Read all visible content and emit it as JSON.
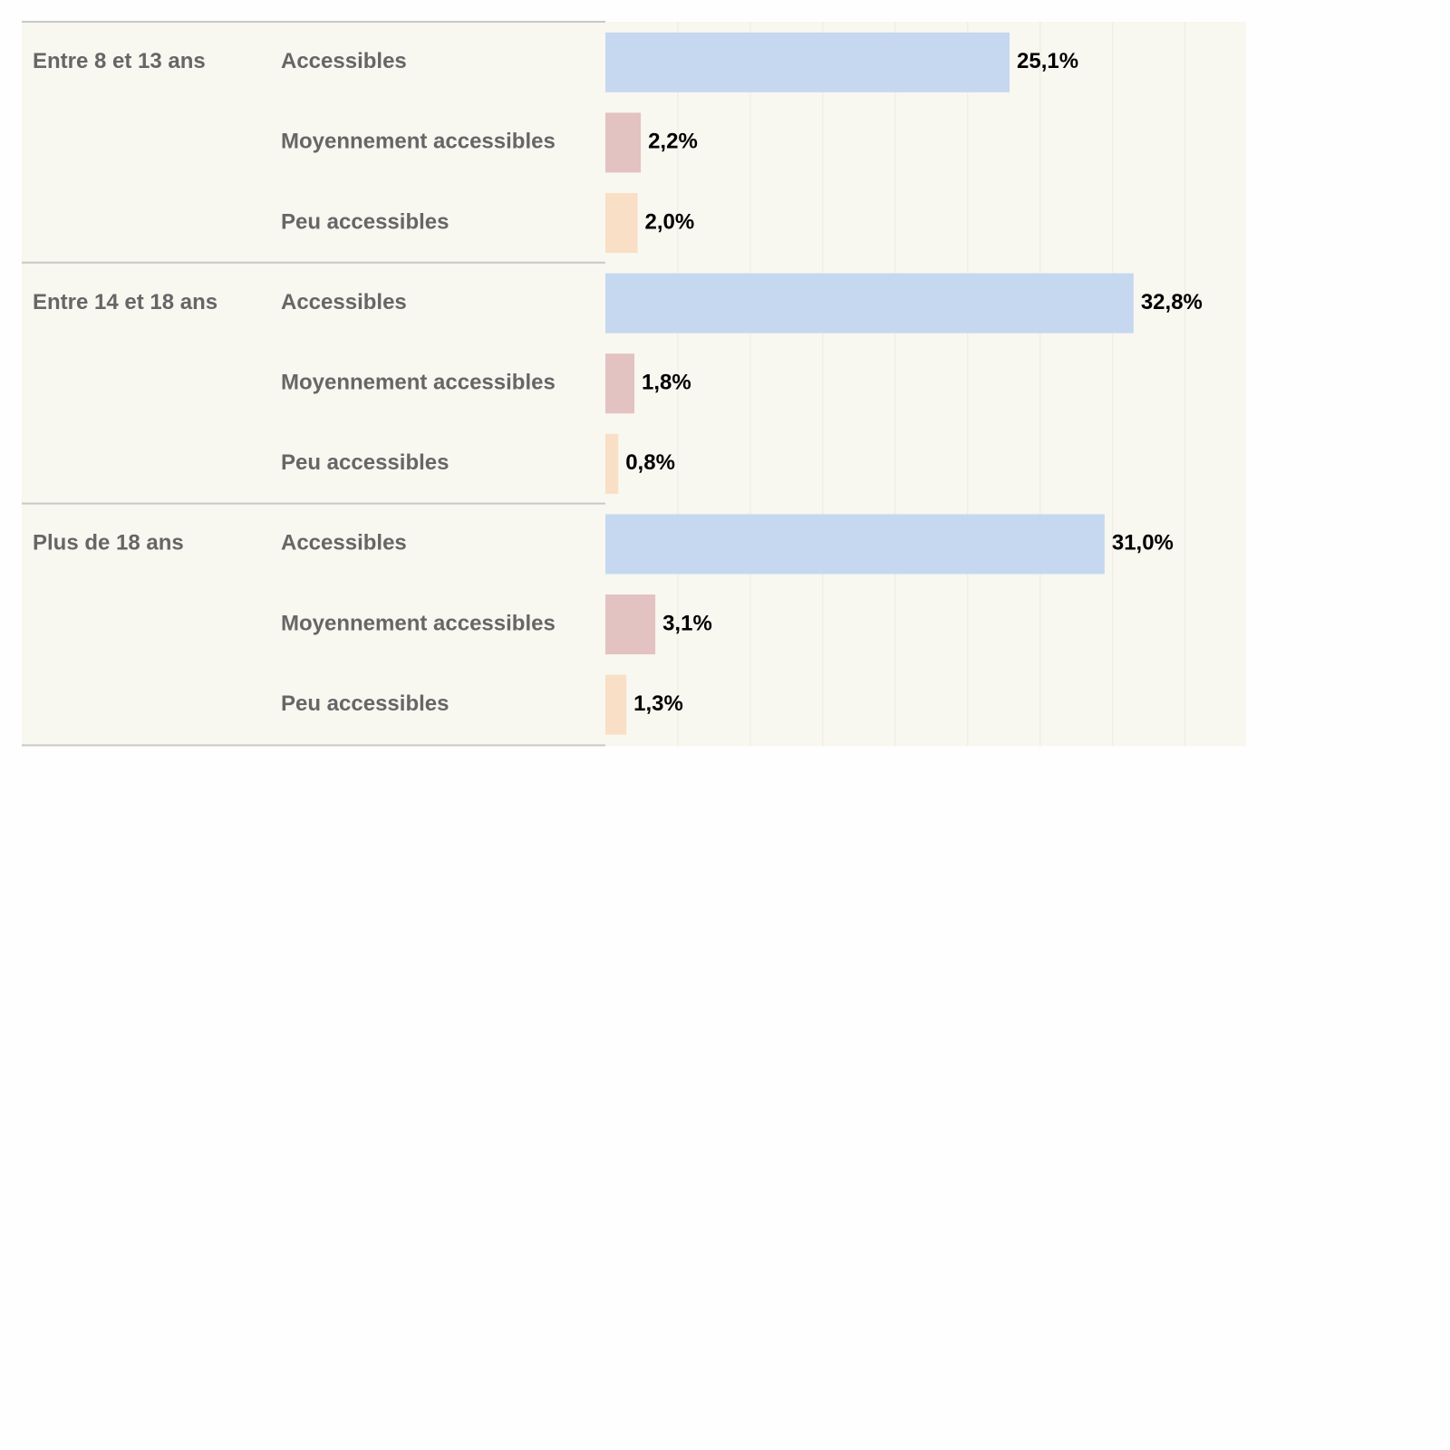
{
  "chart_data": {
    "type": "bar",
    "orientation": "horizontal",
    "title": "",
    "xlabel": "",
    "ylabel": "",
    "xlim": [
      0,
      39
    ],
    "grid": true,
    "groups": [
      {
        "name": "Entre 8 et 13 ans",
        "bars": [
          {
            "label": "Accessibles",
            "value": 25.1,
            "value_label": "25,1%",
            "color": "#c5d8f0"
          },
          {
            "label": "Moyennement accessibles",
            "value": 2.2,
            "value_label": "2,2%",
            "color": "#e3c2c2"
          },
          {
            "label": "Peu accessibles",
            "value": 2.0,
            "value_label": "2,0%",
            "color": "#f9dfc5"
          }
        ]
      },
      {
        "name": "Entre 14 et 18 ans",
        "bars": [
          {
            "label": "Accessibles",
            "value": 32.8,
            "value_label": "32,8%",
            "color": "#c5d8f0"
          },
          {
            "label": "Moyennement accessibles",
            "value": 1.8,
            "value_label": "1,8%",
            "color": "#e3c2c2"
          },
          {
            "label": "Peu accessibles",
            "value": 0.8,
            "value_label": "0,8%",
            "color": "#f9dfc5"
          }
        ]
      },
      {
        "name": "Plus de 18 ans",
        "bars": [
          {
            "label": "Accessibles",
            "value": 31.0,
            "value_label": "31,0%",
            "color": "#c5d8f0"
          },
          {
            "label": "Moyennement accessibles",
            "value": 3.1,
            "value_label": "3,1%",
            "color": "#e3c2c2"
          },
          {
            "label": "Peu accessibles",
            "value": 1.3,
            "value_label": "1,3%",
            "color": "#f9dfc5"
          }
        ]
      }
    ],
    "colors": {
      "panel_background": "#f8f7f0",
      "page_background": "#fefefe",
      "separator": "#c8c8c8",
      "gridline": "#ecebe3",
      "label_text": "#666666",
      "value_text": "#000000"
    }
  }
}
